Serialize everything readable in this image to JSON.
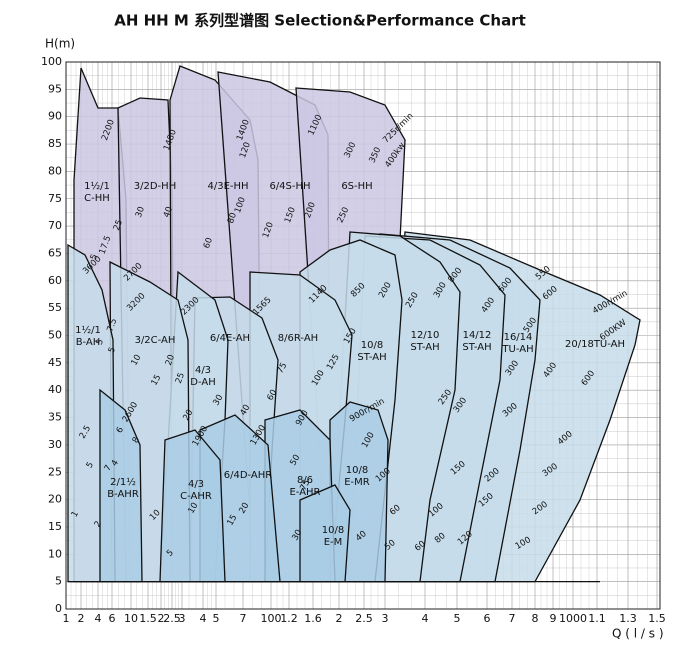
{
  "chart_data": {
    "type": "region",
    "title": "AH HH M 系列型谱图  Selection&Performance Chart",
    "y_label": "H(m)",
    "x_label": "Q ( l / s )",
    "ylim": [
      0,
      100
    ],
    "yticks": [
      0,
      5,
      10,
      15,
      20,
      25,
      30,
      35,
      40,
      45,
      50,
      55,
      60,
      65,
      70,
      75,
      80,
      85,
      90,
      95,
      100
    ],
    "x_tick_labels": [
      "1",
      "2",
      "4",
      "6",
      "10",
      "1.5",
      "2",
      "2.5",
      "3",
      "4",
      "5",
      "7",
      "100",
      "1.2",
      "1.6",
      "2",
      "2.5",
      "3",
      "4",
      "5",
      "6",
      "7",
      "8",
      "9",
      "1000",
      "1.1",
      "1.3",
      "1.5"
    ],
    "regions": [
      {
        "lines": [
          "1½/1",
          "C-HH"
        ]
      },
      {
        "lines": [
          "3/2D-HH"
        ]
      },
      {
        "lines": [
          "4/3E-HH"
        ]
      },
      {
        "lines": [
          "6/4S-HH"
        ]
      },
      {
        "lines": [
          "6S-HH"
        ]
      },
      {
        "lines": [
          "20/18TU-AH"
        ]
      },
      {
        "lines": [
          "16/14",
          "TU-AH"
        ]
      },
      {
        "lines": [
          "14/12",
          "ST-AH"
        ]
      },
      {
        "lines": [
          "12/10",
          "ST-AH"
        ]
      },
      {
        "lines": [
          "10/8",
          "ST-AH"
        ]
      },
      {
        "lines": [
          "8/6R-AH"
        ]
      },
      {
        "lines": [
          "6/4E-AH"
        ]
      },
      {
        "lines": [
          "4/3",
          "D-AH"
        ]
      },
      {
        "lines": [
          "3/2C-AH"
        ]
      },
      {
        "lines": [
          "1½/1",
          "B-AH"
        ]
      },
      {
        "lines": [
          "10/8",
          "E-MR"
        ]
      },
      {
        "lines": [
          "8/6",
          "E-AHR"
        ]
      },
      {
        "lines": [
          "6/4D-AHR"
        ]
      },
      {
        "lines": [
          "4/3",
          "C-AHR"
        ]
      },
      {
        "lines": [
          "2/1½",
          "B-AHR"
        ]
      },
      {
        "lines": [
          "10/8",
          "E-M"
        ]
      }
    ],
    "annotations": [
      "2200",
      "1480",
      "1400",
      "1100",
      "725r/min",
      "400kw",
      "350",
      "300",
      "200",
      "250",
      "150",
      "120",
      "100",
      "80",
      "120",
      "60",
      "40",
      "30",
      "25",
      "17.5",
      "5",
      "3600",
      "2700",
      "3200",
      "2300",
      "1565",
      "1140",
      "850",
      "200",
      "250",
      "300",
      "800",
      "600",
      "550",
      "600",
      "400r/min",
      "600KW",
      "500",
      "400",
      "400",
      "600",
      "300",
      "300",
      "250",
      "400",
      "300",
      "300",
      "200",
      "200",
      "150",
      "150",
      "100",
      "120",
      "100",
      "100",
      "80",
      "60",
      "60",
      "50",
      "40",
      "150",
      "125",
      "100",
      "75",
      "60",
      "40",
      "30",
      "20",
      "15",
      "10",
      "7.5",
      "5",
      "5",
      "20",
      "25",
      "900",
      "1300",
      "1900",
      "2600",
      "900r/min",
      "100",
      "50",
      "75",
      "30",
      "20",
      "15",
      "10",
      "5",
      "10",
      "6",
      "8",
      "4",
      "7",
      "5",
      "2.5",
      "1",
      "2"
    ]
  }
}
